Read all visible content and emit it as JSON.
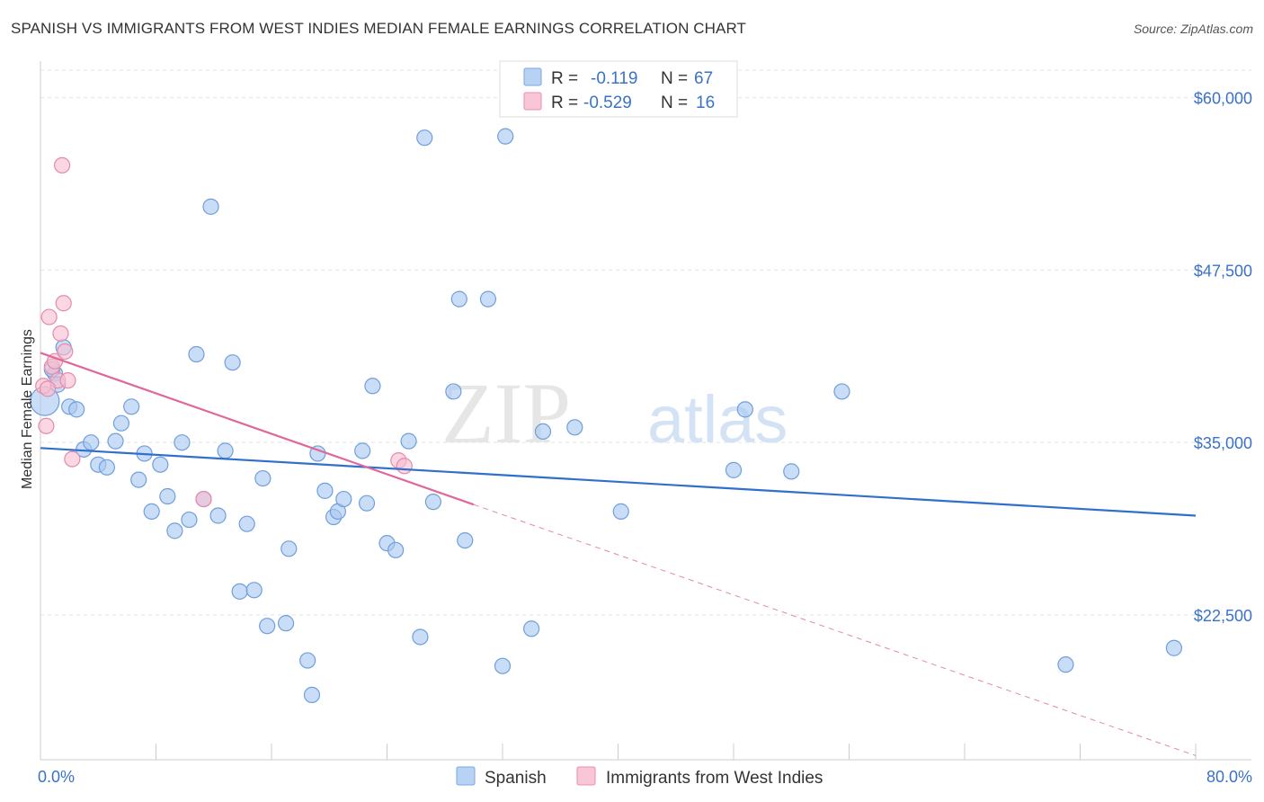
{
  "title": "SPANISH VS IMMIGRANTS FROM WEST INDIES MEDIAN FEMALE EARNINGS CORRELATION CHART",
  "source": "Source: ZipAtlas.com",
  "watermark": {
    "zip": "ZIP",
    "atlas": "atlas"
  },
  "legend": {
    "r_label": "R =",
    "n_label": "N =",
    "rows": [
      {
        "r": "-0.119",
        "n": "67",
        "color": "#b8d2f4",
        "stroke": "#7aa6e0"
      },
      {
        "r": "-0.529",
        "n": "16",
        "color": "#f9c6d6",
        "stroke": "#e88fae"
      }
    ]
  },
  "chart_data": {
    "type": "scatter",
    "title": "SPANISH VS IMMIGRANTS FROM WEST INDIES MEDIAN FEMALE EARNINGS CORRELATION CHART",
    "xlabel": "",
    "ylabel": "Median Female Earnings",
    "xlim": [
      0,
      80
    ],
    "ylim": [
      12000,
      62000
    ],
    "x_tick_labels": [
      "0.0%",
      "80.0%"
    ],
    "y_ticks": [
      22500,
      35000,
      47500,
      60000
    ],
    "y_tick_labels": [
      "$22,500",
      "$35,000",
      "$47,500",
      "$60,000"
    ],
    "series": [
      {
        "name": "Spanish",
        "color": "#aac8f0",
        "stroke": "#6f9fdc",
        "trend_color": "#2f6fce",
        "trend": {
          "x": [
            0,
            80
          ],
          "y": [
            34600,
            29700
          ]
        },
        "points": [
          [
            0.3,
            38000
          ],
          [
            1.0,
            40000
          ],
          [
            1.2,
            39200
          ],
          [
            1.6,
            41900
          ],
          [
            2.0,
            37600
          ],
          [
            2.5,
            37400
          ],
          [
            3.0,
            34500
          ],
          [
            3.5,
            35000
          ],
          [
            4.0,
            33400
          ],
          [
            4.6,
            33200
          ],
          [
            5.2,
            35100
          ],
          [
            5.6,
            36400
          ],
          [
            6.3,
            37600
          ],
          [
            6.8,
            32300
          ],
          [
            7.2,
            34200
          ],
          [
            7.7,
            30000
          ],
          [
            8.3,
            33400
          ],
          [
            8.8,
            31100
          ],
          [
            9.3,
            28600
          ],
          [
            9.8,
            35000
          ],
          [
            10.3,
            29400
          ],
          [
            10.8,
            41400
          ],
          [
            11.3,
            30900
          ],
          [
            11.8,
            52100
          ],
          [
            12.3,
            29700
          ],
          [
            12.8,
            34400
          ],
          [
            13.3,
            40800
          ],
          [
            13.8,
            24200
          ],
          [
            14.3,
            29100
          ],
          [
            14.8,
            24300
          ],
          [
            15.4,
            32400
          ],
          [
            15.7,
            21700
          ],
          [
            17.0,
            21900
          ],
          [
            17.2,
            27300
          ],
          [
            18.5,
            19200
          ],
          [
            18.8,
            16700
          ],
          [
            19.2,
            34200
          ],
          [
            19.7,
            31500
          ],
          [
            20.3,
            29600
          ],
          [
            20.6,
            30000
          ],
          [
            21.0,
            30900
          ],
          [
            22.3,
            34400
          ],
          [
            22.6,
            30600
          ],
          [
            23.0,
            39100
          ],
          [
            24.0,
            27700
          ],
          [
            24.6,
            27200
          ],
          [
            25.5,
            35100
          ],
          [
            26.3,
            20900
          ],
          [
            26.6,
            57100
          ],
          [
            27.2,
            30700
          ],
          [
            28.6,
            38700
          ],
          [
            29.0,
            45400
          ],
          [
            29.4,
            27900
          ],
          [
            31.0,
            45400
          ],
          [
            32.0,
            18800
          ],
          [
            32.2,
            57200
          ],
          [
            34.0,
            21500
          ],
          [
            34.8,
            35800
          ],
          [
            37.0,
            36100
          ],
          [
            40.2,
            30000
          ],
          [
            48.0,
            33000
          ],
          [
            48.8,
            37400
          ],
          [
            52.0,
            32900
          ],
          [
            55.5,
            38700
          ],
          [
            71.0,
            18900
          ],
          [
            78.5,
            20100
          ],
          [
            0.8,
            40300
          ]
        ]
      },
      {
        "name": "Immigrants from West Indies",
        "color": "#f7bfd0",
        "stroke": "#e68aa9",
        "trend_color": "#e0679a",
        "trend": {
          "x": [
            0,
            30
          ],
          "y": [
            41500,
            30500
          ]
        },
        "trend_extension": {
          "x": [
            30,
            80
          ],
          "y": [
            30500,
            12300
          ]
        },
        "points": [
          [
            0.2,
            39100
          ],
          [
            0.4,
            36200
          ],
          [
            0.6,
            44100
          ],
          [
            0.8,
            40500
          ],
          [
            1.0,
            40900
          ],
          [
            1.2,
            39500
          ],
          [
            1.5,
            55100
          ],
          [
            1.6,
            45100
          ],
          [
            1.4,
            42900
          ],
          [
            1.7,
            41600
          ],
          [
            1.9,
            39500
          ],
          [
            2.2,
            33800
          ],
          [
            11.3,
            30900
          ],
          [
            24.8,
            33700
          ],
          [
            25.2,
            33300
          ],
          [
            0.5,
            38900
          ]
        ]
      }
    ]
  }
}
